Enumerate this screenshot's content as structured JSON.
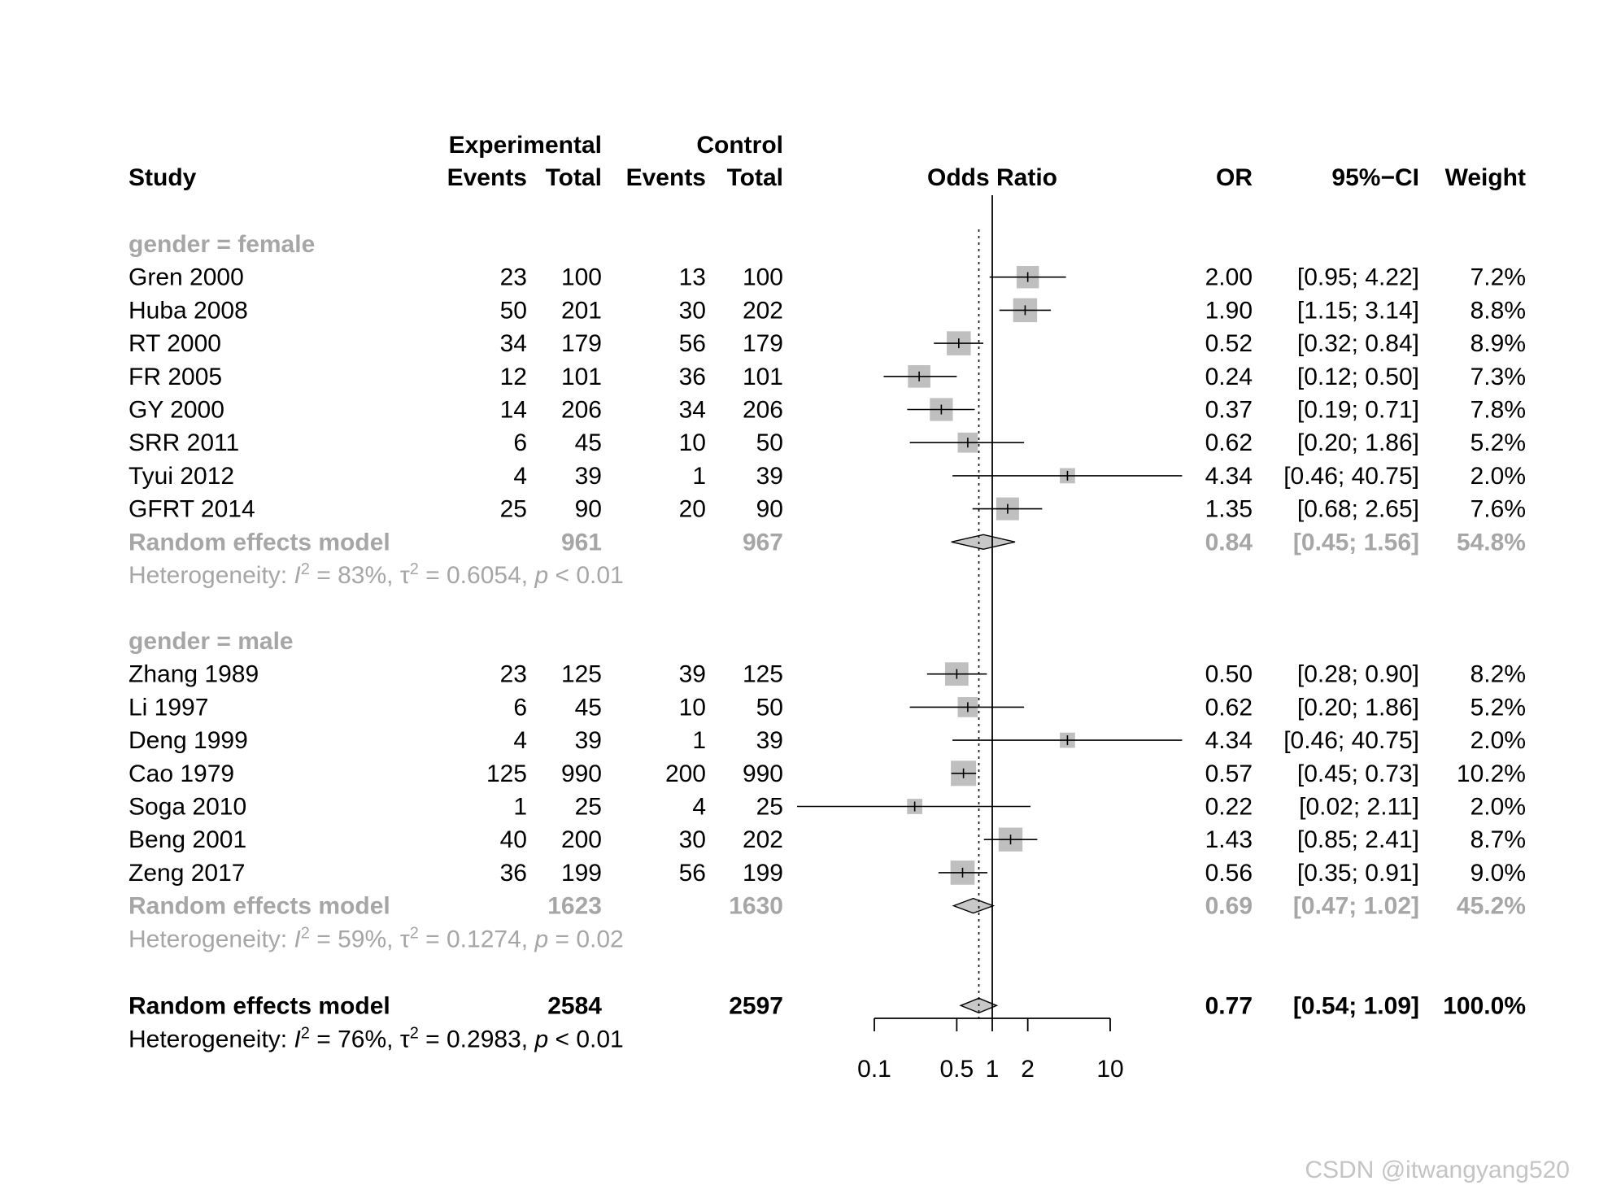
{
  "chart_data": {
    "type": "forest",
    "measure": "Odds Ratio",
    "scale": "log",
    "xlim": [
      0.1,
      10
    ],
    "ticks": [
      {
        "value": 0.1,
        "label": "0.1"
      },
      {
        "value": 0.5,
        "label": "0.5"
      },
      {
        "value": 1,
        "label": "1"
      },
      {
        "value": 2,
        "label": "2"
      },
      {
        "value": 10,
        "label": "10"
      }
    ],
    "null_value": 1,
    "overall_estimate": 0.77,
    "headers": {
      "study": "Study",
      "experimental": "Experimental",
      "control": "Control",
      "events": "Events",
      "total": "Total",
      "plot_label": "Odds Ratio",
      "or": "OR",
      "ci": "95%−CI",
      "weight": "Weight"
    },
    "subgroups": [
      {
        "label": "gender = female",
        "studies": [
          {
            "study": "Gren 2000",
            "exp_events": "23",
            "exp_total": "100",
            "ctrl_events": "13",
            "ctrl_total": "100",
            "or": 2.0,
            "lower": 0.95,
            "upper": 4.22,
            "or_text": "2.00",
            "ci_text": "[0.95;  4.22]",
            "weight_text": "7.2%",
            "weight": 7.2
          },
          {
            "study": "Huba 2008",
            "exp_events": "50",
            "exp_total": "201",
            "ctrl_events": "30",
            "ctrl_total": "202",
            "or": 1.9,
            "lower": 1.15,
            "upper": 3.14,
            "or_text": "1.90",
            "ci_text": "[1.15;  3.14]",
            "weight_text": "8.8%",
            "weight": 8.8
          },
          {
            "study": "RT 2000",
            "exp_events": "34",
            "exp_total": "179",
            "ctrl_events": "56",
            "ctrl_total": "179",
            "or": 0.52,
            "lower": 0.32,
            "upper": 0.84,
            "or_text": "0.52",
            "ci_text": "[0.32;  0.84]",
            "weight_text": "8.9%",
            "weight": 8.9
          },
          {
            "study": "FR 2005",
            "exp_events": "12",
            "exp_total": "101",
            "ctrl_events": "36",
            "ctrl_total": "101",
            "or": 0.24,
            "lower": 0.12,
            "upper": 0.5,
            "or_text": "0.24",
            "ci_text": "[0.12;  0.50]",
            "weight_text": "7.3%",
            "weight": 7.3
          },
          {
            "study": "GY 2000",
            "exp_events": "14",
            "exp_total": "206",
            "ctrl_events": "34",
            "ctrl_total": "206",
            "or": 0.37,
            "lower": 0.19,
            "upper": 0.71,
            "or_text": "0.37",
            "ci_text": "[0.19;  0.71]",
            "weight_text": "7.8%",
            "weight": 7.8
          },
          {
            "study": "SRR 2011",
            "exp_events": "6",
            "exp_total": "45",
            "ctrl_events": "10",
            "ctrl_total": "50",
            "or": 0.62,
            "lower": 0.2,
            "upper": 1.86,
            "or_text": "0.62",
            "ci_text": "[0.20;  1.86]",
            "weight_text": "5.2%",
            "weight": 5.2
          },
          {
            "study": "Tyui 2012",
            "exp_events": "4",
            "exp_total": "39",
            "ctrl_events": "1",
            "ctrl_total": "39",
            "or": 4.34,
            "lower": 0.46,
            "upper": 40.75,
            "or_text": "4.34",
            "ci_text": "[0.46; 40.75]",
            "weight_text": "2.0%",
            "weight": 2.0
          },
          {
            "study": "GFRT 2014",
            "exp_events": "25",
            "exp_total": "90",
            "ctrl_events": "20",
            "ctrl_total": "90",
            "or": 1.35,
            "lower": 0.68,
            "upper": 2.65,
            "or_text": "1.35",
            "ci_text": "[0.68;  2.65]",
            "weight_text": "7.6%",
            "weight": 7.6
          }
        ],
        "pooled": {
          "label": "Random effects model",
          "exp_total": "961",
          "ctrl_total": "967",
          "or": 0.84,
          "lower": 0.45,
          "upper": 1.56,
          "or_text": "0.84",
          "ci_text": "[0.45;  1.56]",
          "weight_text": "54.8%"
        },
        "heterogeneity": {
          "prefix": "Heterogeneity: ",
          "i_symbol": "I",
          "sq": "2",
          "i2_text": " = 83%, ",
          "tau_symbol": "τ",
          "tau_text": " = 0.6054, ",
          "p_symbol": "p",
          "p_text": " < 0.01"
        }
      },
      {
        "label": "gender = male",
        "studies": [
          {
            "study": "Zhang 1989",
            "exp_events": "23",
            "exp_total": "125",
            "ctrl_events": "39",
            "ctrl_total": "125",
            "or": 0.5,
            "lower": 0.28,
            "upper": 0.9,
            "or_text": "0.50",
            "ci_text": "[0.28;  0.90]",
            "weight_text": "8.2%",
            "weight": 8.2
          },
          {
            "study": "Li 1997",
            "exp_events": "6",
            "exp_total": "45",
            "ctrl_events": "10",
            "ctrl_total": "50",
            "or": 0.62,
            "lower": 0.2,
            "upper": 1.86,
            "or_text": "0.62",
            "ci_text": "[0.20;  1.86]",
            "weight_text": "5.2%",
            "weight": 5.2
          },
          {
            "study": "Deng 1999",
            "exp_events": "4",
            "exp_total": "39",
            "ctrl_events": "1",
            "ctrl_total": "39",
            "or": 4.34,
            "lower": 0.46,
            "upper": 40.75,
            "or_text": "4.34",
            "ci_text": "[0.46; 40.75]",
            "weight_text": "2.0%",
            "weight": 2.0
          },
          {
            "study": "Cao 1979",
            "exp_events": "125",
            "exp_total": "990",
            "ctrl_events": "200",
            "ctrl_total": "990",
            "or": 0.57,
            "lower": 0.45,
            "upper": 0.73,
            "or_text": "0.57",
            "ci_text": "[0.45;  0.73]",
            "weight_text": "10.2%",
            "weight": 10.2
          },
          {
            "study": "Soga 2010",
            "exp_events": "1",
            "exp_total": "25",
            "ctrl_events": "4",
            "ctrl_total": "25",
            "or": 0.22,
            "lower": 0.02,
            "upper": 2.11,
            "or_text": "0.22",
            "ci_text": "[0.02;  2.11]",
            "weight_text": "2.0%",
            "weight": 2.0
          },
          {
            "study": "Beng 2001",
            "exp_events": "40",
            "exp_total": "200",
            "ctrl_events": "30",
            "ctrl_total": "202",
            "or": 1.43,
            "lower": 0.85,
            "upper": 2.41,
            "or_text": "1.43",
            "ci_text": "[0.85;  2.41]",
            "weight_text": "8.7%",
            "weight": 8.7
          },
          {
            "study": "Zeng 2017",
            "exp_events": "36",
            "exp_total": "199",
            "ctrl_events": "56",
            "ctrl_total": "199",
            "or": 0.56,
            "lower": 0.35,
            "upper": 0.91,
            "or_text": "0.56",
            "ci_text": "[0.35;  0.91]",
            "weight_text": "9.0%",
            "weight": 9.0
          }
        ],
        "pooled": {
          "label": "Random effects model",
          "exp_total": "1623",
          "ctrl_total": "1630",
          "or": 0.69,
          "lower": 0.47,
          "upper": 1.02,
          "or_text": "0.69",
          "ci_text": "[0.47;  1.02]",
          "weight_text": "45.2%"
        },
        "heterogeneity": {
          "prefix": "Heterogeneity: ",
          "i_symbol": "I",
          "sq": "2",
          "i2_text": " = 59%, ",
          "tau_symbol": "τ",
          "tau_text": " = 0.1274, ",
          "p_symbol": "p",
          "p_text": " = 0.02"
        }
      }
    ],
    "overall": {
      "label": "Random effects model",
      "exp_total": "2584",
      "ctrl_total": "2597",
      "or": 0.77,
      "lower": 0.54,
      "upper": 1.09,
      "or_text": "0.77",
      "ci_text": "[0.54;  1.09]",
      "weight_text": "100.0%",
      "heterogeneity": {
        "prefix": "Heterogeneity: ",
        "i_symbol": "I",
        "sq": "2",
        "i2_text": " = 76%, ",
        "tau_symbol": "τ",
        "tau_text": " = 0.2983, ",
        "p_symbol": "p",
        "p_text": " < 0.01"
      }
    }
  },
  "watermark": "CSDN @itwangyang520",
  "colors": {
    "text": "#000000",
    "subgroup_text": "#a6a6a6",
    "box_fill": "#bfbfbf",
    "diamond_fill": "#c8c8c8",
    "watermark": "#c4c4c4"
  }
}
